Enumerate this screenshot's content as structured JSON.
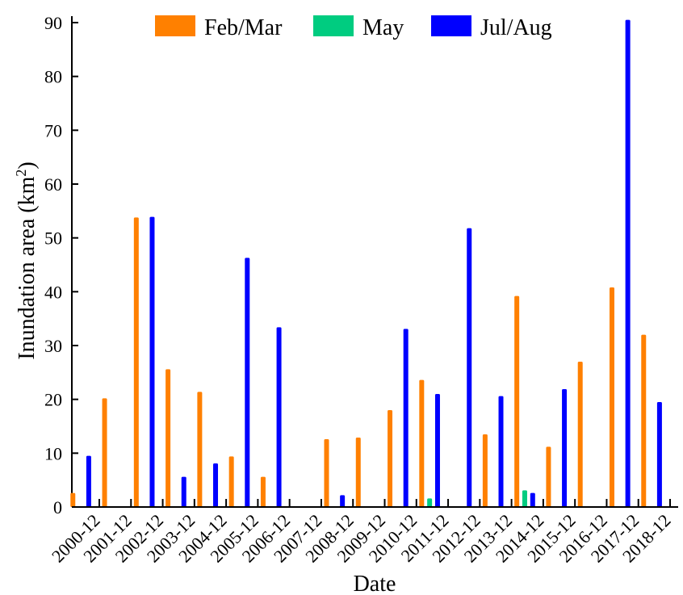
{
  "chart_data": {
    "type": "bar",
    "xlabel": "Date",
    "ylabel": "Inundation area (km",
    "ylabel_sup": "2",
    "ylabel_close": ")",
    "ylim": [
      0,
      90
    ],
    "yticks": [
      0,
      10,
      20,
      30,
      40,
      50,
      60,
      70,
      80,
      90
    ],
    "grid": false,
    "legend_position": "top",
    "categories": [
      "2000-12",
      "2001-12",
      "2002-12",
      "2003-12",
      "2004-12",
      "2005-12",
      "2006-12",
      "2007-12",
      "2008-12",
      "2009-12",
      "2010-12",
      "2011-12",
      "2012-12",
      "2013-12",
      "2014-12",
      "2015-12",
      "2016-12",
      "2017-12",
      "2018-12"
    ],
    "x_start": "2000-02",
    "series": [
      {
        "name": "Feb/Mar",
        "color": "#ff8000",
        "points": [
          {
            "x": "2000-02",
            "y": 2.6
          },
          {
            "x": "2001-02",
            "y": 20.2
          },
          {
            "x": "2002-02",
            "y": 53.8
          },
          {
            "x": "2003-02",
            "y": 25.6
          },
          {
            "x": "2004-02",
            "y": 21.4
          },
          {
            "x": "2005-02",
            "y": 9.4
          },
          {
            "x": "2006-02",
            "y": 5.6
          },
          {
            "x": "2008-02",
            "y": 12.6
          },
          {
            "x": "2009-02",
            "y": 12.9
          },
          {
            "x": "2010-02",
            "y": 18.0
          },
          {
            "x": "2011-02",
            "y": 23.6
          },
          {
            "x": "2013-02",
            "y": 13.5
          },
          {
            "x": "2014-02",
            "y": 39.2
          },
          {
            "x": "2015-02",
            "y": 11.2
          },
          {
            "x": "2016-02",
            "y": 27.0
          },
          {
            "x": "2017-02",
            "y": 40.8
          },
          {
            "x": "2018-02",
            "y": 32.0
          }
        ]
      },
      {
        "name": "May",
        "color": "#00cc80",
        "points": [
          {
            "x": "2011-05",
            "y": 1.6
          },
          {
            "x": "2014-05",
            "y": 3.1
          }
        ]
      },
      {
        "name": "Jul/Aug",
        "color": "#0000ff",
        "points": [
          {
            "x": "2000-08",
            "y": 9.5
          },
          {
            "x": "2002-08",
            "y": 53.9
          },
          {
            "x": "2003-08",
            "y": 5.6
          },
          {
            "x": "2004-08",
            "y": 8.1
          },
          {
            "x": "2005-08",
            "y": 46.3
          },
          {
            "x": "2006-08",
            "y": 33.4
          },
          {
            "x": "2008-08",
            "y": 2.2
          },
          {
            "x": "2010-08",
            "y": 33.1
          },
          {
            "x": "2011-08",
            "y": 21.0
          },
          {
            "x": "2012-08",
            "y": 51.8
          },
          {
            "x": "2013-08",
            "y": 20.6
          },
          {
            "x": "2014-08",
            "y": 2.6
          },
          {
            "x": "2015-08",
            "y": 21.9
          },
          {
            "x": "2017-08",
            "y": 90.5
          },
          {
            "x": "2018-08",
            "y": 19.5
          }
        ]
      }
    ]
  }
}
